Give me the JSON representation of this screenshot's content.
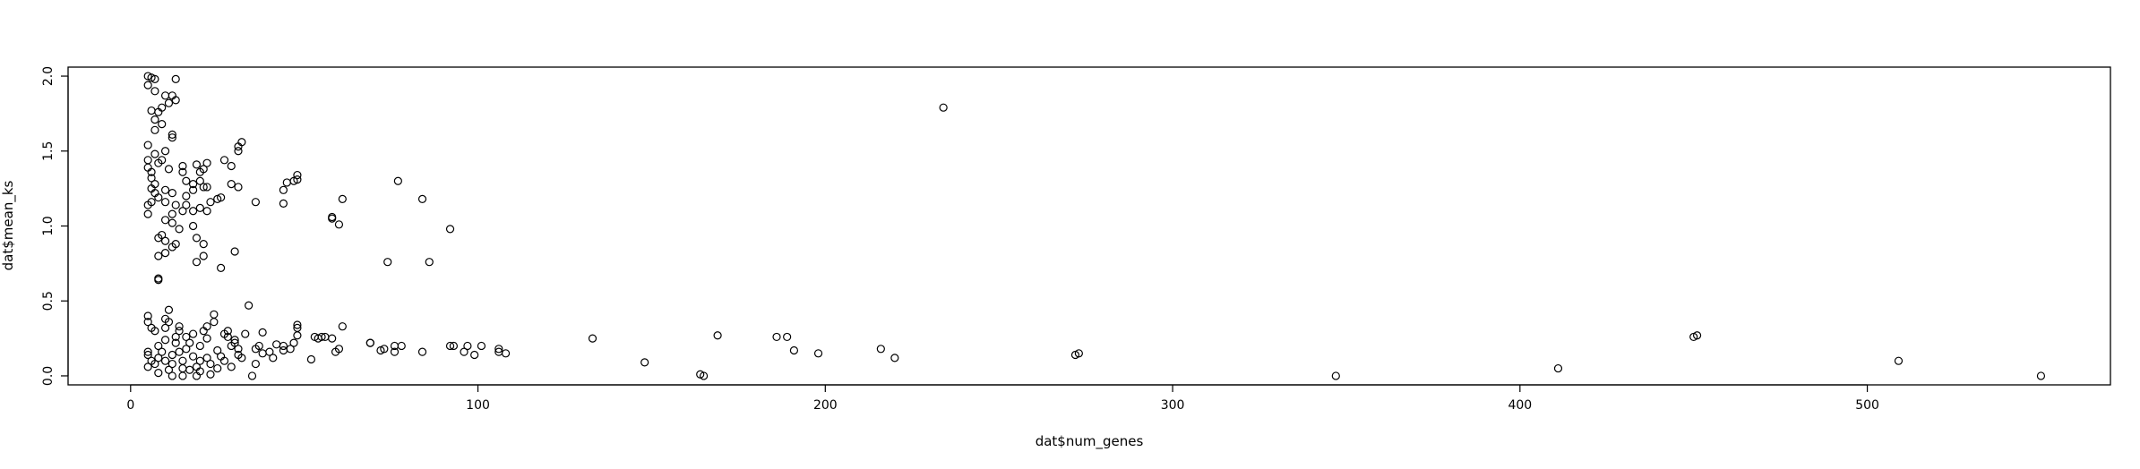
{
  "chart_data": {
    "type": "scatter",
    "title": "",
    "xlabel": "dat$num_genes",
    "ylabel": "dat$mean_ks",
    "xlim": [
      -18,
      570
    ],
    "ylim": [
      -0.06,
      2.06
    ],
    "xticks": [
      0,
      100,
      200,
      300,
      400,
      500
    ],
    "yticks": [
      0.0,
      0.5,
      1.0,
      1.5,
      2.0
    ],
    "xtick_labels": [
      "0",
      "100",
      "200",
      "300",
      "400",
      "500"
    ],
    "ytick_labels": [
      "0.0",
      "0.5",
      "1.0",
      "1.5",
      "2.0"
    ],
    "grid": false,
    "marker": "open-circle",
    "points": [
      [
        5,
        2.0
      ],
      [
        6,
        1.99
      ],
      [
        7,
        1.98
      ],
      [
        5,
        1.94
      ],
      [
        7,
        1.9
      ],
      [
        6,
        1.77
      ],
      [
        8,
        1.76
      ],
      [
        7,
        1.71
      ],
      [
        9,
        1.68
      ],
      [
        7,
        1.64
      ],
      [
        5,
        1.54
      ],
      [
        7,
        1.48
      ],
      [
        5,
        1.44
      ],
      [
        8,
        1.42
      ],
      [
        5,
        1.39
      ],
      [
        6,
        1.36
      ],
      [
        6,
        1.32
      ],
      [
        7,
        1.28
      ],
      [
        6,
        1.25
      ],
      [
        7,
        1.22
      ],
      [
        8,
        1.19
      ],
      [
        6,
        1.16
      ],
      [
        5,
        1.14
      ],
      [
        5,
        1.08
      ],
      [
        9,
        1.44
      ],
      [
        10,
        1.87
      ],
      [
        11,
        1.82
      ],
      [
        9,
        1.79
      ],
      [
        12,
        1.87
      ],
      [
        12,
        1.61
      ],
      [
        12,
        1.59
      ],
      [
        10,
        1.5
      ],
      [
        13,
        1.84
      ],
      [
        13,
        1.98
      ],
      [
        11,
        1.38
      ],
      [
        10,
        1.24
      ],
      [
        12,
        1.22
      ],
      [
        13,
        1.14
      ],
      [
        10,
        1.16
      ],
      [
        12,
        1.08
      ],
      [
        10,
        1.04
      ],
      [
        12,
        1.02
      ],
      [
        9,
        0.94
      ],
      [
        10,
        0.9
      ],
      [
        8,
        0.92
      ],
      [
        12,
        0.86
      ],
      [
        10,
        0.82
      ],
      [
        8,
        0.8
      ],
      [
        8,
        0.65
      ],
      [
        8,
        0.64
      ],
      [
        14,
        0.98
      ],
      [
        13,
        0.88
      ],
      [
        15,
        1.1
      ],
      [
        16,
        1.14
      ],
      [
        16,
        1.2
      ],
      [
        15,
        1.36
      ],
      [
        15,
        1.4
      ],
      [
        16,
        1.3
      ],
      [
        18,
        1.24
      ],
      [
        18,
        1.28
      ],
      [
        20,
        1.3
      ],
      [
        20,
        1.36
      ],
      [
        19,
        1.41
      ],
      [
        21,
        1.38
      ],
      [
        22,
        1.42
      ],
      [
        21,
        1.26
      ],
      [
        22,
        1.26
      ],
      [
        20,
        1.12
      ],
      [
        18,
        1.1
      ],
      [
        22,
        1.1
      ],
      [
        19,
        0.92
      ],
      [
        21,
        0.88
      ],
      [
        19,
        0.76
      ],
      [
        21,
        0.8
      ],
      [
        18,
        1.0
      ],
      [
        23,
        1.16
      ],
      [
        25,
        1.18
      ],
      [
        26,
        1.19
      ],
      [
        27,
        1.44
      ],
      [
        29,
        1.4
      ],
      [
        29,
        1.28
      ],
      [
        31,
        1.26
      ],
      [
        31,
        1.5
      ],
      [
        31,
        1.53
      ],
      [
        32,
        1.56
      ],
      [
        26,
        0.72
      ],
      [
        30,
        0.83
      ],
      [
        36,
        1.16
      ],
      [
        44,
        1.15
      ],
      [
        44,
        1.24
      ],
      [
        45,
        1.29
      ],
      [
        47,
        1.3
      ],
      [
        48,
        1.34
      ],
      [
        48,
        1.31
      ],
      [
        58,
        1.06
      ],
      [
        58,
        1.05
      ],
      [
        60,
        1.01
      ],
      [
        61,
        1.18
      ],
      [
        74,
        0.76
      ],
      [
        77,
        1.3
      ],
      [
        84,
        1.18
      ],
      [
        86,
        0.76
      ],
      [
        92,
        0.98
      ],
      [
        234,
        1.79
      ],
      [
        5,
        0.4
      ],
      [
        5,
        0.36
      ],
      [
        6,
        0.32
      ],
      [
        7,
        0.3
      ],
      [
        5,
        0.16
      ],
      [
        5,
        0.14
      ],
      [
        6,
        0.1
      ],
      [
        7,
        0.08
      ],
      [
        5,
        0.06
      ],
      [
        8,
        0.02
      ],
      [
        8,
        0.12
      ],
      [
        8,
        0.2
      ],
      [
        9,
        0.16
      ],
      [
        10,
        0.24
      ],
      [
        10,
        0.32
      ],
      [
        10,
        0.38
      ],
      [
        11,
        0.44
      ],
      [
        11,
        0.36
      ],
      [
        10,
        0.1
      ],
      [
        11,
        0.04
      ],
      [
        12,
        0.0
      ],
      [
        12,
        0.08
      ],
      [
        12,
        0.14
      ],
      [
        13,
        0.22
      ],
      [
        13,
        0.26
      ],
      [
        14,
        0.3
      ],
      [
        14,
        0.33
      ],
      [
        14,
        0.16
      ],
      [
        15,
        0.1
      ],
      [
        15,
        0.05
      ],
      [
        15,
        0.0
      ],
      [
        16,
        0.18
      ],
      [
        16,
        0.26
      ],
      [
        17,
        0.22
      ],
      [
        17,
        0.04
      ],
      [
        18,
        0.13
      ],
      [
        18,
        0.28
      ],
      [
        19,
        0.06
      ],
      [
        19,
        0.0
      ],
      [
        20,
        0.03
      ],
      [
        20,
        0.1
      ],
      [
        20,
        0.2
      ],
      [
        21,
        0.3
      ],
      [
        22,
        0.33
      ],
      [
        22,
        0.25
      ],
      [
        22,
        0.12
      ],
      [
        23,
        0.08
      ],
      [
        23,
        0.01
      ],
      [
        24,
        0.36
      ],
      [
        24,
        0.41
      ],
      [
        25,
        0.17
      ],
      [
        25,
        0.05
      ],
      [
        26,
        0.13
      ],
      [
        27,
        0.1
      ],
      [
        27,
        0.28
      ],
      [
        28,
        0.26
      ],
      [
        28,
        0.3
      ],
      [
        29,
        0.06
      ],
      [
        29,
        0.2
      ],
      [
        30,
        0.24
      ],
      [
        30,
        0.22
      ],
      [
        31,
        0.14
      ],
      [
        31,
        0.18
      ],
      [
        32,
        0.12
      ],
      [
        33,
        0.28
      ],
      [
        34,
        0.47
      ],
      [
        35,
        0.0
      ],
      [
        36,
        0.08
      ],
      [
        36,
        0.18
      ],
      [
        37,
        0.2
      ],
      [
        38,
        0.15
      ],
      [
        38,
        0.29
      ],
      [
        40,
        0.16
      ],
      [
        41,
        0.12
      ],
      [
        42,
        0.21
      ],
      [
        44,
        0.2
      ],
      [
        44,
        0.17
      ],
      [
        46,
        0.18
      ],
      [
        47,
        0.22
      ],
      [
        48,
        0.27
      ],
      [
        48,
        0.34
      ],
      [
        48,
        0.32
      ],
      [
        52,
        0.11
      ],
      [
        53,
        0.26
      ],
      [
        54,
        0.25
      ],
      [
        55,
        0.26
      ],
      [
        56,
        0.26
      ],
      [
        58,
        0.25
      ],
      [
        59,
        0.16
      ],
      [
        60,
        0.18
      ],
      [
        61,
        0.33
      ],
      [
        69,
        0.22
      ],
      [
        69,
        0.22
      ],
      [
        72,
        0.17
      ],
      [
        73,
        0.18
      ],
      [
        76,
        0.2
      ],
      [
        76,
        0.16
      ],
      [
        78,
        0.2
      ],
      [
        84,
        0.16
      ],
      [
        92,
        0.2
      ],
      [
        93,
        0.2
      ],
      [
        96,
        0.16
      ],
      [
        97,
        0.2
      ],
      [
        99,
        0.14
      ],
      [
        101,
        0.2
      ],
      [
        106,
        0.18
      ],
      [
        106,
        0.16
      ],
      [
        108,
        0.15
      ],
      [
        133,
        0.25
      ],
      [
        148,
        0.09
      ],
      [
        164,
        0.01
      ],
      [
        165,
        0.0
      ],
      [
        169,
        0.27
      ],
      [
        186,
        0.26
      ],
      [
        189,
        0.26
      ],
      [
        191,
        0.17
      ],
      [
        198,
        0.15
      ],
      [
        216,
        0.18
      ],
      [
        220,
        0.12
      ],
      [
        272,
        0.14
      ],
      [
        273,
        0.15
      ],
      [
        347,
        0.0
      ],
      [
        411,
        0.05
      ],
      [
        450,
        0.26
      ],
      [
        451,
        0.27
      ],
      [
        509,
        0.1
      ],
      [
        550,
        0.0
      ]
    ]
  }
}
